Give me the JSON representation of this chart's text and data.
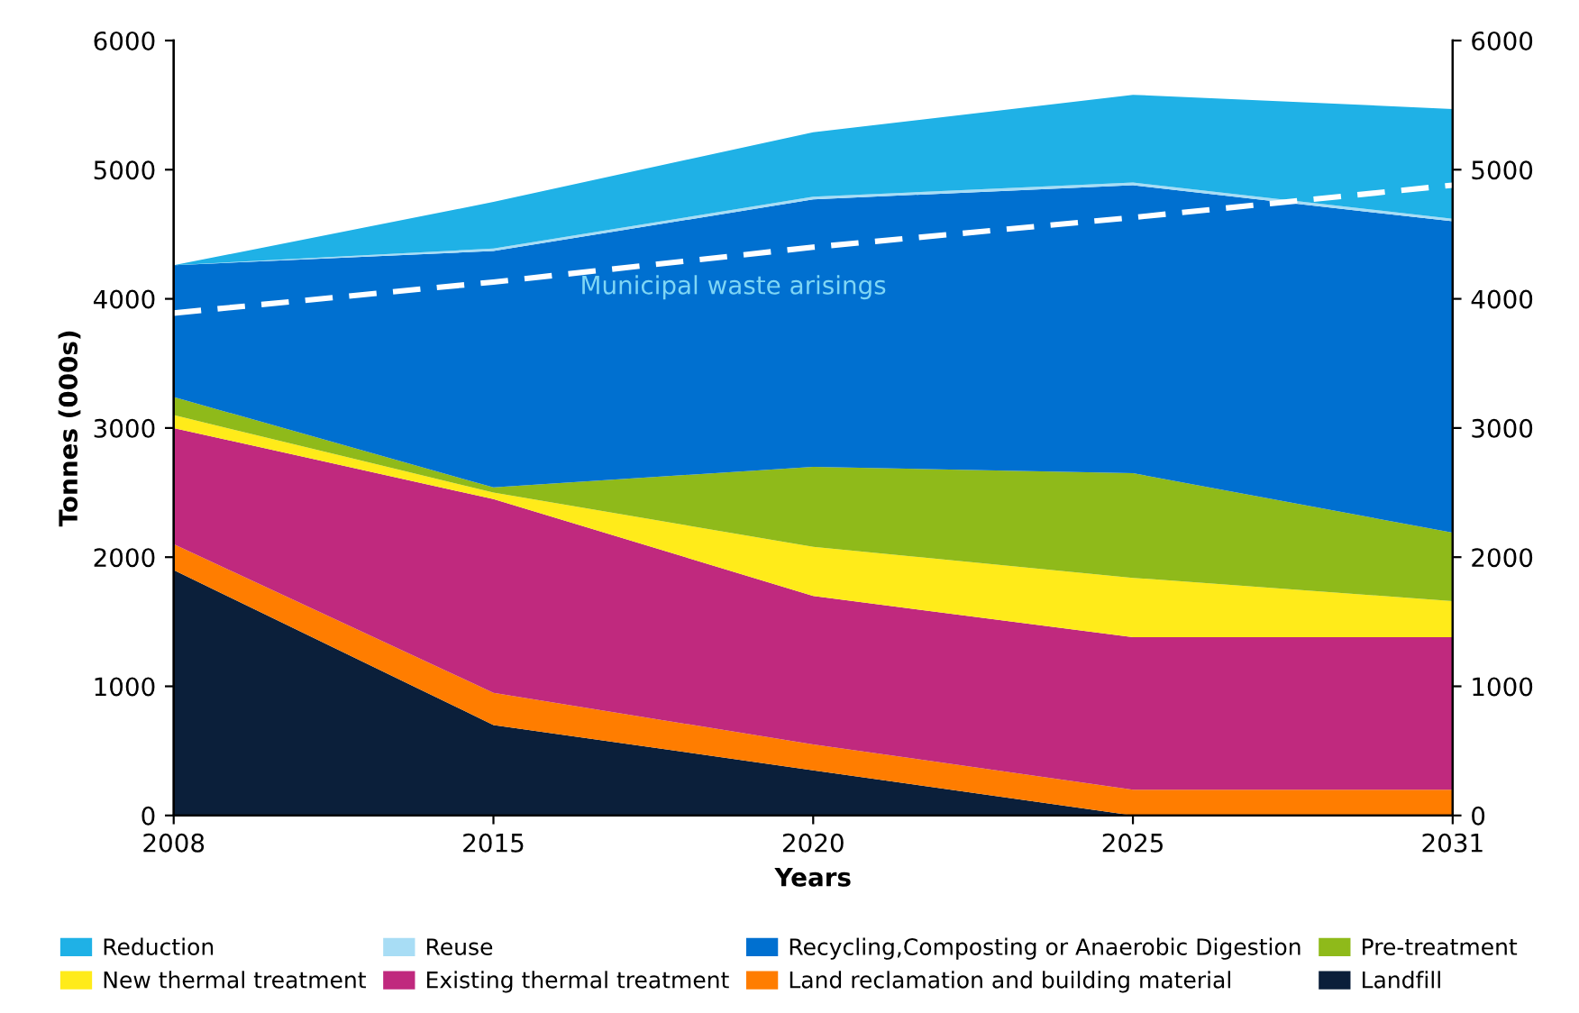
{
  "chart_data": {
    "type": "area",
    "stacked": true,
    "xlabel": "Years",
    "ylabel": "Tonnes (000s)",
    "categories": [
      "2008",
      "2015",
      "2020",
      "2025",
      "2031"
    ],
    "ylim": [
      0,
      6000
    ],
    "yticks": [
      0,
      1000,
      2000,
      3000,
      4000,
      5000,
      6000
    ],
    "y2lim": [
      0,
      6000
    ],
    "y2ticks": [
      0,
      1000,
      2000,
      3000,
      4000,
      5000,
      6000
    ],
    "grid": false,
    "legend": "bottom",
    "series": [
      {
        "name": "Landfill",
        "color": "#0b1f3a",
        "values": [
          1900,
          700,
          350,
          0,
          0
        ]
      },
      {
        "name": "Land reclamation and building material",
        "color": "#ff7d00",
        "values": [
          200,
          250,
          200,
          200,
          200
        ]
      },
      {
        "name": "Existing thermal treatment",
        "color": "#c0297e",
        "values": [
          900,
          1500,
          1150,
          1180,
          1180
        ]
      },
      {
        "name": "New thermal treatment",
        "color": "#ffeb1a",
        "values": [
          100,
          50,
          380,
          460,
          280
        ]
      },
      {
        "name": "Pre-treatment",
        "color": "#8fba1a",
        "values": [
          140,
          40,
          620,
          810,
          530
        ]
      },
      {
        "name": "Recycling,Composting or Anaerobic Digestion",
        "color": "#0070d0",
        "values": [
          1020,
          1830,
          2070,
          2230,
          2410
        ]
      },
      {
        "name": "Reuse",
        "color": "#a8ddf5",
        "values": [
          0,
          20,
          20,
          20,
          20
        ]
      },
      {
        "name": "Reduction",
        "color": "#1fb1e6",
        "values": [
          0,
          360,
          500,
          680,
          850
        ]
      },
      {
        "name": "Municipal waste arisings",
        "type": "line",
        "line_style": "dashed",
        "color": "#ffffff",
        "values": [
          3890,
          4130,
          4400,
          4630,
          4880
        ]
      }
    ]
  }
}
